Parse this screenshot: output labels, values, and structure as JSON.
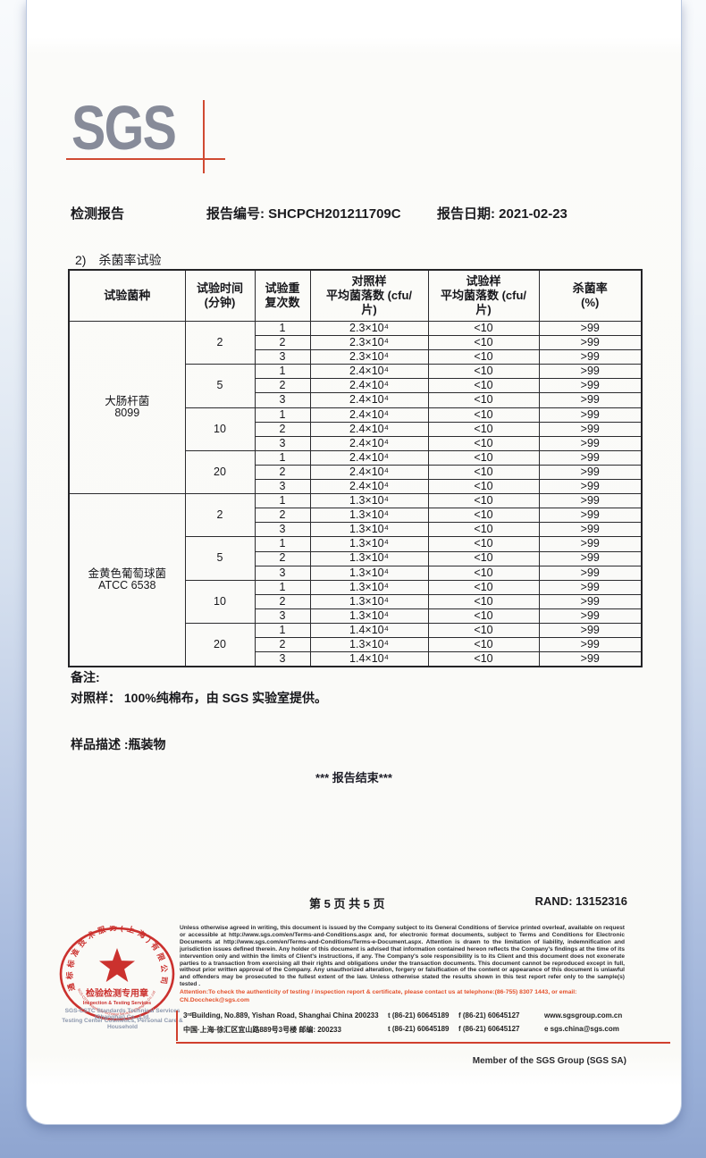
{
  "document": {
    "report_title": "检测报告",
    "report_no_label": "报告编号:",
    "report_no": "SHCPCH201211709C",
    "report_date_label": "报告日期:",
    "report_date": "2021-02-23"
  },
  "logo": {
    "text": "SGS"
  },
  "section": {
    "number": "2)",
    "title": "杀菌率试验"
  },
  "table": {
    "headers": [
      "试验菌种",
      "试验时间\n(分钟)",
      "试验重\n复次数",
      "对照样\n平均菌落数 (cfu/\n片)",
      "试验样\n平均菌落数 (cfu/\n片)",
      "杀菌率\n(%)"
    ],
    "groups": [
      {
        "species": "大肠杆菌\n8099",
        "times": [
          {
            "time": "2",
            "rows": [
              [
                "1",
                "2.3×10⁴",
                "<10",
                ">99"
              ],
              [
                "2",
                "2.3×10⁴",
                "<10",
                ">99"
              ],
              [
                "3",
                "2.3×10⁴",
                "<10",
                ">99"
              ]
            ]
          },
          {
            "time": "5",
            "rows": [
              [
                "1",
                "2.4×10⁴",
                "<10",
                ">99"
              ],
              [
                "2",
                "2.4×10⁴",
                "<10",
                ">99"
              ],
              [
                "3",
                "2.4×10⁴",
                "<10",
                ">99"
              ]
            ]
          },
          {
            "time": "10",
            "rows": [
              [
                "1",
                "2.4×10⁴",
                "<10",
                ">99"
              ],
              [
                "2",
                "2.4×10⁴",
                "<10",
                ">99"
              ],
              [
                "3",
                "2.4×10⁴",
                "<10",
                ">99"
              ]
            ]
          },
          {
            "time": "20",
            "rows": [
              [
                "1",
                "2.4×10⁴",
                "<10",
                ">99"
              ],
              [
                "2",
                "2.4×10⁴",
                "<10",
                ">99"
              ],
              [
                "3",
                "2.4×10⁴",
                "<10",
                ">99"
              ]
            ]
          }
        ]
      },
      {
        "species": "金黄色葡萄球菌\nATCC 6538",
        "times": [
          {
            "time": "2",
            "rows": [
              [
                "1",
                "1.3×10⁴",
                "<10",
                ">99"
              ],
              [
                "2",
                "1.3×10⁴",
                "<10",
                ">99"
              ],
              [
                "3",
                "1.3×10⁴",
                "<10",
                ">99"
              ]
            ]
          },
          {
            "time": "5",
            "rows": [
              [
                "1",
                "1.3×10⁴",
                "<10",
                ">99"
              ],
              [
                "2",
                "1.3×10⁴",
                "<10",
                ">99"
              ],
              [
                "3",
                "1.3×10⁴",
                "<10",
                ">99"
              ]
            ]
          },
          {
            "time": "10",
            "rows": [
              [
                "1",
                "1.3×10⁴",
                "<10",
                ">99"
              ],
              [
                "2",
                "1.3×10⁴",
                "<10",
                ">99"
              ],
              [
                "3",
                "1.3×10⁴",
                "<10",
                ">99"
              ]
            ]
          },
          {
            "time": "20",
            "rows": [
              [
                "1",
                "1.4×10⁴",
                "<10",
                ">99"
              ],
              [
                "2",
                "1.3×10⁴",
                "<10",
                ">99"
              ],
              [
                "3",
                "1.4×10⁴",
                "<10",
                ">99"
              ]
            ]
          }
        ]
      }
    ]
  },
  "notes": {
    "remark_label": "备注:",
    "control_note": "对照样：  100%纯棉布，由 SGS 实验室提供。",
    "sample_desc": "样品描述 :瓶装物",
    "end_marker": "*** 报告结束***"
  },
  "pagination": {
    "page_info": "第 5 页 共 5 页",
    "rand_label": "RAND:",
    "rand_value": "13152316"
  },
  "footer": {
    "disclaimer": "Unless otherwise agreed in writing, this document is issued by the Company subject to its General Conditions of Service printed overleaf, available on request or accessible at http://www.sgs.com/en/Terms-and-Conditions.aspx and, for electronic format documents, subject to Terms and Conditions for Electronic Documents at http://www.sgs.com/en/Terms-and-Conditions/Terms-e-Document.aspx. Attention is drawn to the limitation of liability, indemnification and jurisdiction issues defined therein. Any holder of this document is advised that information contained hereon reflects the Company's findings at the time of its intervention only and within the limits of Client's instructions, if any. The Company's sole responsibility is to its Client and this document does not exonerate parties to a transaction from exercising all their rights and obligations under the transaction documents. This document cannot be reproduced except in full, without prior written approval of the Company. Any unauthorized alteration, forgery or falsification of the content or appearance of this document is unlawful and offenders may be prosecuted to the fullest extent of the law. Unless otherwise stated the results shown in this test report refer only to the sample(s) tested .",
    "attention": "Attention:To check the authenticity of testing / inspection report & certificate, please contact us at telephone:(86-755) 8307 1443, or email: CN.Doccheck@sgs.com",
    "address_en": "3ʳᵈBuilding, No.889, Yishan Road, Shanghai China 200233",
    "address_cn": "中国·上海·徐汇区宜山路889号3号楼  邮编: 200233",
    "tel_en": "t (86-21) 60645189",
    "fax_en": "f (86-21) 60645127",
    "web": "www.sgsgroup.com.cn",
    "tel_cn": "t (86-21) 60645189",
    "fax_cn": "f (86-21) 60645127",
    "email": "e  sgs.china@sgs.com",
    "member": "Member of the SGS Group (SGS SA)",
    "stamp": {
      "arc_top": "通标标准技术服务(上海)有限公司",
      "inner_cn": "检验检测专用章",
      "inner_en": "Inspection & Testing Services",
      "arc_bottom": "SGS-CSTC Standards Technical Services (Shanghai) Co.,Ltd",
      "company_line1": "SGS-CSTC Standards Technical Services (Shanghai) Co., Ltd.",
      "company_line2": "Testing Center Cosmetics, Personal Care & Household"
    }
  },
  "colors": {
    "accent_red": "#d04a32",
    "stamp_red": "#c8221f",
    "attention_red": "#e4512b",
    "logo_gray": "#878b99",
    "background_blue": "#8fa5d0"
  }
}
